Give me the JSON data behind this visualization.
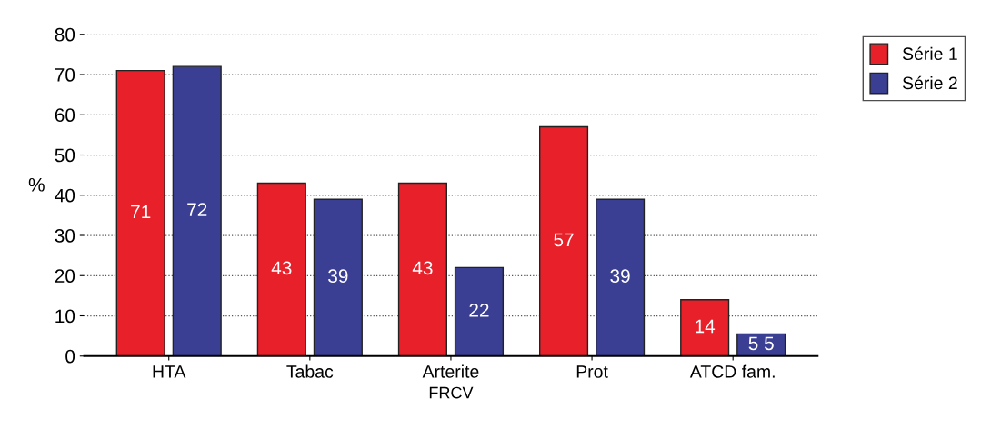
{
  "chart_data": {
    "type": "bar",
    "xlabel": "FRCV",
    "ylabel": "%",
    "categories": [
      "HTA",
      "Tabac",
      "Arterite",
      "Prot",
      "ATCD fam."
    ],
    "series": [
      {
        "name": "Série 1",
        "color": "#e8202a",
        "values": [
          71,
          43,
          43,
          57,
          14
        ],
        "value_labels": [
          "71",
          "43",
          "43",
          "57",
          "14"
        ]
      },
      {
        "name": "Série 2",
        "color": "#3a3f94",
        "values": [
          72,
          39,
          22,
          39,
          5.5
        ],
        "value_labels": [
          "72",
          "39",
          "22",
          "39",
          "5 5"
        ]
      }
    ],
    "ylim": [
      0,
      80
    ],
    "yticks": [
      0,
      10,
      20,
      30,
      40,
      50,
      60,
      70,
      80
    ],
    "grid": "y",
    "legend": "top right"
  }
}
